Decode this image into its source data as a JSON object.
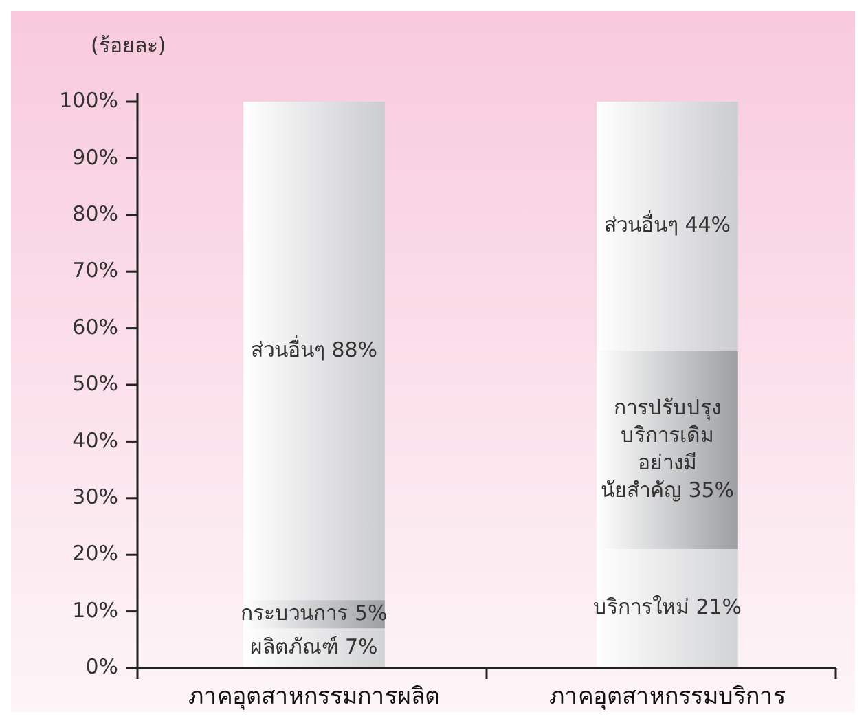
{
  "chart_data": {
    "type": "bar",
    "stacked": true,
    "ylabel": "(ร้อยละ)",
    "categories": [
      "ภาคอุตสาหกรรมการผลิต",
      "ภาคอุตสาหกรรมบริการ"
    ],
    "series": [
      {
        "color": "#d2d3d5",
        "values": [
          7,
          21
        ],
        "value_labels": [
          "ผลิตภัณฑ์ 7%",
          "บริการใหม่ 21%"
        ]
      },
      {
        "color": "#9d9fa2",
        "values": [
          5,
          35
        ],
        "value_labels": [
          "กระบวนการ 5%",
          "การปรับปรุง\nบริการเดิม\nอย่างมี\nนัยสำคัญ 35%"
        ]
      },
      {
        "color": "#cbcccf",
        "values": [
          88,
          44
        ],
        "value_labels": [
          "ส่วนอื่นๆ 88%",
          "ส่วนอื่นๆ 44%"
        ]
      }
    ],
    "ylim": [
      0,
      100
    ],
    "yticks": [
      {
        "value": 0,
        "label": "0%"
      },
      {
        "value": 10,
        "label": "10%"
      },
      {
        "value": 20,
        "label": "20%"
      },
      {
        "value": 30,
        "label": "30%"
      },
      {
        "value": 40,
        "label": "40%"
      },
      {
        "value": 50,
        "label": "50%"
      },
      {
        "value": 60,
        "label": "60%"
      },
      {
        "value": 70,
        "label": "70%"
      },
      {
        "value": 80,
        "label": "80%"
      },
      {
        "value": 90,
        "label": "90%"
      },
      {
        "value": 100,
        "label": "100%"
      }
    ],
    "grid": false
  }
}
